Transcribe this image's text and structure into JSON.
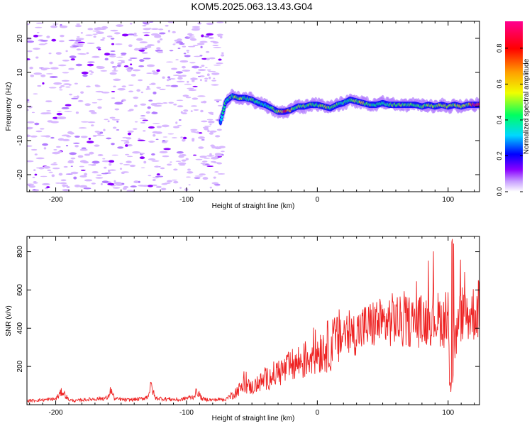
{
  "title": "KOM5.2025.063.13.43.G04",
  "chart_data": [
    {
      "type": "heatmap",
      "xlabel": "Height of straight line (km)",
      "ylabel": "Frequency (Hz)",
      "xlim": [
        -222,
        124
      ],
      "ylim": [
        -25,
        25
      ],
      "xticks": [
        -200,
        -100,
        0,
        100
      ],
      "yticks": [
        -20,
        -10,
        0,
        10,
        20
      ],
      "xtick_labels": [
        "-200",
        "-100",
        "0",
        "100"
      ],
      "ytick_labels": [
        "-20",
        "-10",
        "0",
        "10",
        "20"
      ],
      "colorbar": {
        "label": "Normalized spectral amplitude",
        "range": [
          0,
          0.95
        ],
        "ticks": [
          0.0,
          0.2,
          0.4,
          0.6,
          0.8
        ],
        "tick_labels": [
          "0.0",
          "0.2",
          "0.4",
          "0.6",
          "0.8"
        ],
        "colors": [
          "#ffffff",
          "#c8a0ff",
          "#8a00ff",
          "#0000ff",
          "#00d8ff",
          "#00ff60",
          "#f0ff00",
          "#ffa000",
          "#ff0000",
          "#ff0090"
        ]
      },
      "noise_region_x": [
        -222,
        -72
      ],
      "signal_track": {
        "height_km": [
          -74,
          -70,
          -65,
          -60,
          -55,
          -50,
          -45,
          -40,
          -35,
          -30,
          -25,
          -20,
          -15,
          -10,
          -5,
          0,
          5,
          10,
          15,
          20,
          25,
          30,
          35,
          40,
          45,
          50,
          55,
          60,
          65,
          70,
          75,
          80,
          85,
          90,
          95,
          100,
          105,
          110,
          115,
          120,
          124
        ],
        "frequency_hz": [
          -4.5,
          1.5,
          3.0,
          2.5,
          2.5,
          2.0,
          1.0,
          0.5,
          -0.5,
          -1.5,
          -1.5,
          -1.0,
          0.0,
          0.0,
          0.5,
          0.5,
          0.0,
          -0.5,
          0.5,
          1.0,
          2.0,
          1.5,
          1.0,
          0.5,
          0.5,
          1.0,
          0.5,
          0.5,
          0.5,
          0.5,
          0.5,
          0.0,
          0.5,
          0.0,
          0.5,
          0.0,
          0.5,
          0.0,
          0.5,
          0.5,
          0.5
        ],
        "amplitude": [
          0.3,
          0.5,
          0.5,
          0.6,
          0.45,
          0.5,
          0.45,
          0.4,
          0.5,
          0.55,
          0.9,
          0.6,
          0.5,
          0.5,
          0.5,
          0.5,
          0.6,
          0.55,
          0.5,
          0.45,
          0.5,
          0.55,
          0.6,
          0.5,
          0.5,
          0.45,
          0.5,
          0.55,
          0.55,
          0.5,
          0.5,
          0.5,
          0.6,
          0.55,
          0.55,
          0.6,
          0.55,
          0.6,
          0.55,
          0.95,
          0.9
        ]
      }
    },
    {
      "type": "line",
      "xlabel": "Height of straight line (km)",
      "ylabel": "SNR (v/v)",
      "xlim": [
        -222,
        124
      ],
      "ylim": [
        0,
        880
      ],
      "xticks": [
        -200,
        -100,
        0,
        100
      ],
      "yticks": [
        200,
        400,
        600,
        800
      ],
      "xtick_labels": [
        "-200",
        "-100",
        "0",
        "100"
      ],
      "ytick_labels": [
        "200",
        "400",
        "600",
        "800"
      ],
      "color": "#ee2222",
      "series": [
        {
          "x": [
            -222,
            -210,
            -200,
            -195,
            -190,
            -185,
            -180,
            -170,
            -160,
            -158,
            -155,
            -145,
            -135,
            -130,
            -127,
            -124,
            -115,
            -105,
            -100,
            -95,
            -92,
            -88,
            -80,
            -70,
            -65,
            -60,
            -55,
            -50,
            -45,
            -40,
            -35,
            -30,
            -25,
            -20,
            -15,
            -10,
            -5,
            0,
            5,
            10,
            15,
            20,
            25,
            30,
            35,
            40,
            45,
            50,
            55,
            60,
            65,
            70,
            75,
            80,
            85,
            90,
            95,
            100,
            102,
            103,
            105,
            108,
            110,
            115,
            120,
            124
          ],
          "y": [
            20,
            25,
            30,
            70,
            25,
            20,
            25,
            30,
            35,
            80,
            30,
            25,
            30,
            40,
            100,
            35,
            30,
            25,
            35,
            40,
            70,
            30,
            25,
            30,
            50,
            80,
            100,
            90,
            110,
            130,
            150,
            170,
            180,
            200,
            220,
            230,
            260,
            280,
            300,
            310,
            330,
            380,
            360,
            380,
            400,
            410,
            430,
            420,
            440,
            450,
            420,
            440,
            430,
            440,
            450,
            460,
            440,
            420,
            80,
            830,
            300,
            420,
            480,
            470,
            480,
            500
          ]
        }
      ],
      "annotations": [
        {
          "x": -128,
          "y": 100
        },
        {
          "x": -157,
          "y": 80
        },
        {
          "x": -93,
          "y": 70
        },
        {
          "x": 103,
          "y": 870
        },
        {
          "x": 102,
          "y": 65
        }
      ]
    }
  ]
}
